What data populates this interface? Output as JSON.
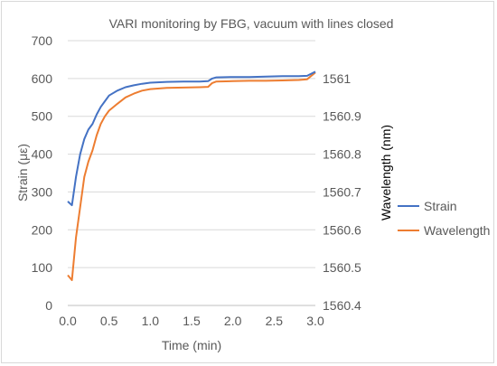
{
  "chart_data": {
    "type": "line",
    "title": "VARI monitoring by FBG, vacuum with lines closed",
    "xlabel": "Time (min)",
    "ylabel_left": "Strain (με)",
    "ylabel_right": "Wavelength (nm)",
    "xlim": [
      0.0,
      3.0
    ],
    "ylim_left": [
      0,
      700
    ],
    "ylim_right": [
      1560.4,
      1561.1
    ],
    "x_ticks": [
      "0.0",
      "0.5",
      "1.0",
      "1.5",
      "2.0",
      "2.5",
      "3.0"
    ],
    "y_left_ticks": [
      "0",
      "100",
      "200",
      "300",
      "400",
      "500",
      "600",
      "700"
    ],
    "y_right_ticks": [
      "1560.4",
      "1560.5",
      "1560.6",
      "1560.7",
      "1560.8",
      "1560.9",
      "1561"
    ],
    "grid": true,
    "legend_position": "right",
    "series": [
      {
        "name": "Strain",
        "axis": "left",
        "color": "#4472c4",
        "x": [
          0.0,
          0.05,
          0.1,
          0.15,
          0.2,
          0.25,
          0.3,
          0.35,
          0.4,
          0.45,
          0.5,
          0.6,
          0.7,
          0.8,
          0.9,
          1.0,
          1.2,
          1.4,
          1.6,
          1.7,
          1.75,
          1.8,
          2.0,
          2.2,
          2.4,
          2.6,
          2.8,
          2.9,
          3.0
        ],
        "y": [
          275,
          265,
          340,
          400,
          440,
          465,
          480,
          505,
          525,
          540,
          555,
          568,
          577,
          582,
          586,
          589,
          591,
          592,
          592,
          593,
          600,
          603,
          604,
          604,
          605,
          606,
          606,
          607,
          618
        ]
      },
      {
        "name": "Wavelength",
        "axis": "right",
        "color": "#ed7d31",
        "x": [
          0.0,
          0.05,
          0.1,
          0.15,
          0.2,
          0.25,
          0.3,
          0.35,
          0.4,
          0.45,
          0.5,
          0.6,
          0.7,
          0.8,
          0.9,
          1.0,
          1.2,
          1.4,
          1.6,
          1.7,
          1.75,
          1.8,
          2.0,
          2.2,
          2.4,
          2.6,
          2.8,
          2.9,
          3.0
        ],
        "y": [
          1560.48,
          1560.467,
          1560.58,
          1560.66,
          1560.74,
          1560.78,
          1560.81,
          1560.85,
          1560.88,
          1560.9,
          1560.915,
          1560.933,
          1560.95,
          1560.96,
          1560.968,
          1560.972,
          1560.975,
          1560.976,
          1560.977,
          1560.978,
          1560.988,
          1560.992,
          1560.993,
          1560.994,
          1560.994,
          1560.995,
          1560.996,
          1560.998,
          1561.016
        ]
      }
    ]
  }
}
